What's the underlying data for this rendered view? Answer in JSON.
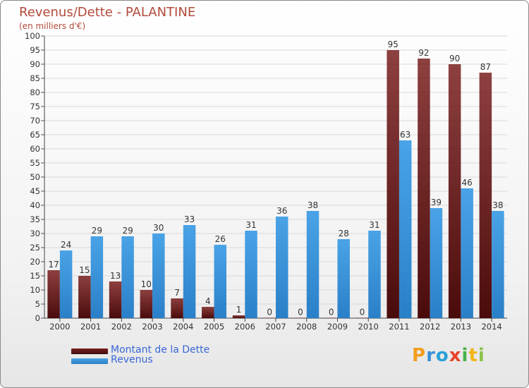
{
  "title": "Revenus/Dette - PALANTINE",
  "subtitle": "(en milliers d'€)",
  "logo": {
    "letters": [
      {
        "ch": "P",
        "color": "#f39c1f"
      },
      {
        "ch": "r",
        "color": "#3c8fd6"
      },
      {
        "ch": "o",
        "color": "#2aa0d8"
      },
      {
        "ch": "x",
        "color": "#e8452b"
      },
      {
        "ch": "i",
        "color": "#46b14a"
      },
      {
        "ch": "t",
        "color": "#f2b418"
      },
      {
        "ch": "i",
        "color": "#8bc34a"
      }
    ]
  },
  "colors": {
    "dette": "#7a1f1f",
    "revenus": "#4aa3e6",
    "text": "#333333",
    "grid": "#d9d9d9"
  },
  "chart_data": {
    "type": "bar",
    "categories": [
      "2000",
      "2001",
      "2002",
      "2003",
      "2004",
      "2005",
      "2006",
      "2007",
      "2008",
      "2009",
      "2010",
      "2011",
      "2012",
      "2013",
      "2014"
    ],
    "series": [
      {
        "name": "Montant de la Dette",
        "values": [
          17,
          15,
          13,
          10,
          7,
          4,
          1,
          0,
          0,
          0,
          0,
          95,
          92,
          90,
          87
        ]
      },
      {
        "name": "Revenus",
        "values": [
          24,
          29,
          29,
          30,
          33,
          26,
          31,
          36,
          38,
          28,
          31,
          63,
          39,
          46,
          38
        ]
      }
    ],
    "ylim": [
      0,
      100
    ],
    "yticks": [
      0,
      5,
      10,
      15,
      20,
      25,
      30,
      35,
      40,
      45,
      50,
      55,
      60,
      65,
      70,
      75,
      80,
      85,
      90,
      95,
      100
    ],
    "grid": true,
    "legend": "bottom-left"
  }
}
